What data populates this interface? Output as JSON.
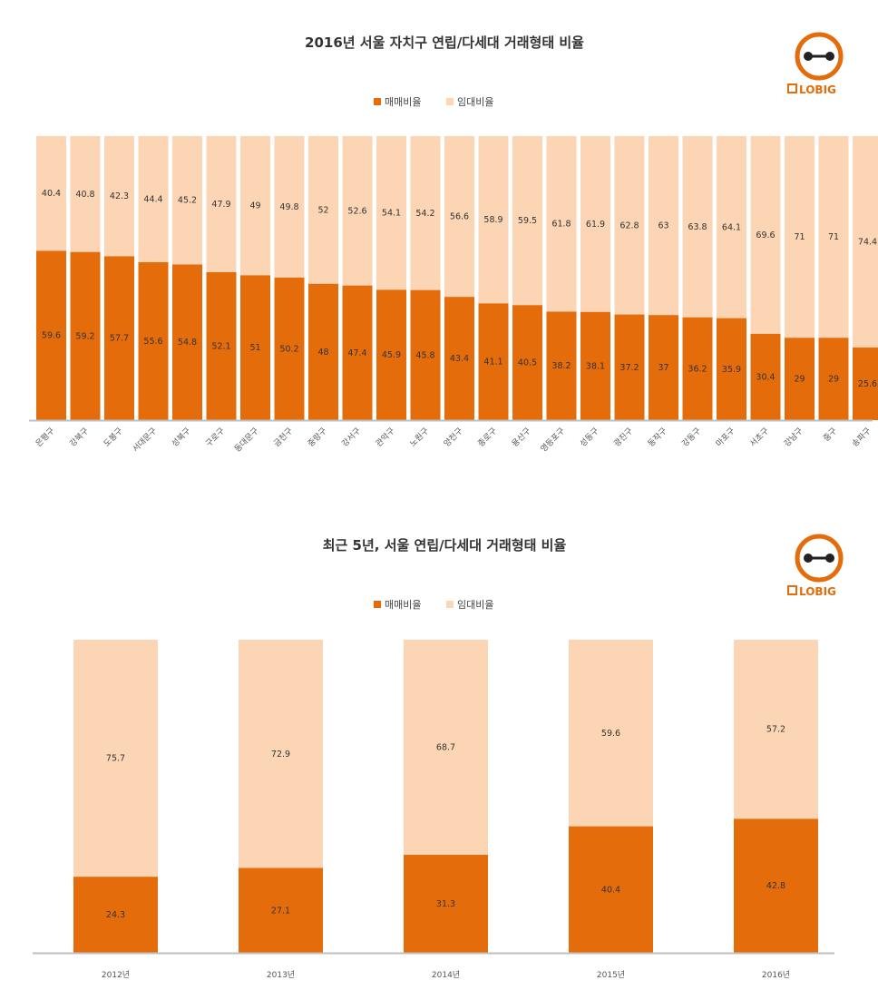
{
  "colors": {
    "sale": "#e46c0a",
    "rent": "#fcd5b5",
    "axis": "#bfbfbf"
  },
  "logo": {
    "text": "LOBIG",
    "icon": "dumbbell-circle-icon"
  },
  "chart_data": [
    {
      "type": "bar",
      "stacked": true,
      "percent": true,
      "title": "2016년 서울 자치구 연립/다세대 거래형태 비율",
      "legend_position": "top",
      "categories": [
        "은평구",
        "강북구",
        "도봉구",
        "서대문구",
        "성북구",
        "구로구",
        "동대문구",
        "금천구",
        "중랑구",
        "강서구",
        "관악구",
        "노원구",
        "양천구",
        "종로구",
        "용산구",
        "영등포구",
        "성동구",
        "광진구",
        "동작구",
        "강동구",
        "마포구",
        "서초구",
        "강남구",
        "중구",
        "송파구"
      ],
      "series": [
        {
          "name": "매매비율",
          "values": [
            59.6,
            59.2,
            57.7,
            55.6,
            54.8,
            52.1,
            51,
            50.2,
            48,
            47.4,
            45.9,
            45.8,
            43.4,
            41.1,
            40.5,
            38.2,
            38.1,
            37.2,
            37,
            36.2,
            35.9,
            30.4,
            29,
            29,
            25.6
          ]
        },
        {
          "name": "임대비율",
          "values": [
            40.4,
            40.8,
            42.3,
            44.4,
            45.2,
            47.9,
            49,
            49.8,
            52,
            52.6,
            54.1,
            54.2,
            56.6,
            58.9,
            59.5,
            61.8,
            61.9,
            62.8,
            63,
            63.8,
            64.1,
            69.6,
            71,
            71,
            74.4
          ]
        }
      ],
      "ylim": [
        0,
        100
      ],
      "grid": false
    },
    {
      "type": "bar",
      "stacked": true,
      "percent": true,
      "title": "최근 5년, 서울 연립/다세대 거래형태 비율",
      "legend_position": "top",
      "categories": [
        "2012년",
        "2013년",
        "2014년",
        "2015년",
        "2016년"
      ],
      "series": [
        {
          "name": "매매비율",
          "values": [
            24.3,
            27.1,
            31.3,
            40.4,
            42.8
          ]
        },
        {
          "name": "임대비율",
          "values": [
            75.7,
            72.9,
            68.7,
            59.6,
            57.2
          ]
        }
      ],
      "ylim": [
        0,
        100
      ],
      "grid": false
    }
  ]
}
